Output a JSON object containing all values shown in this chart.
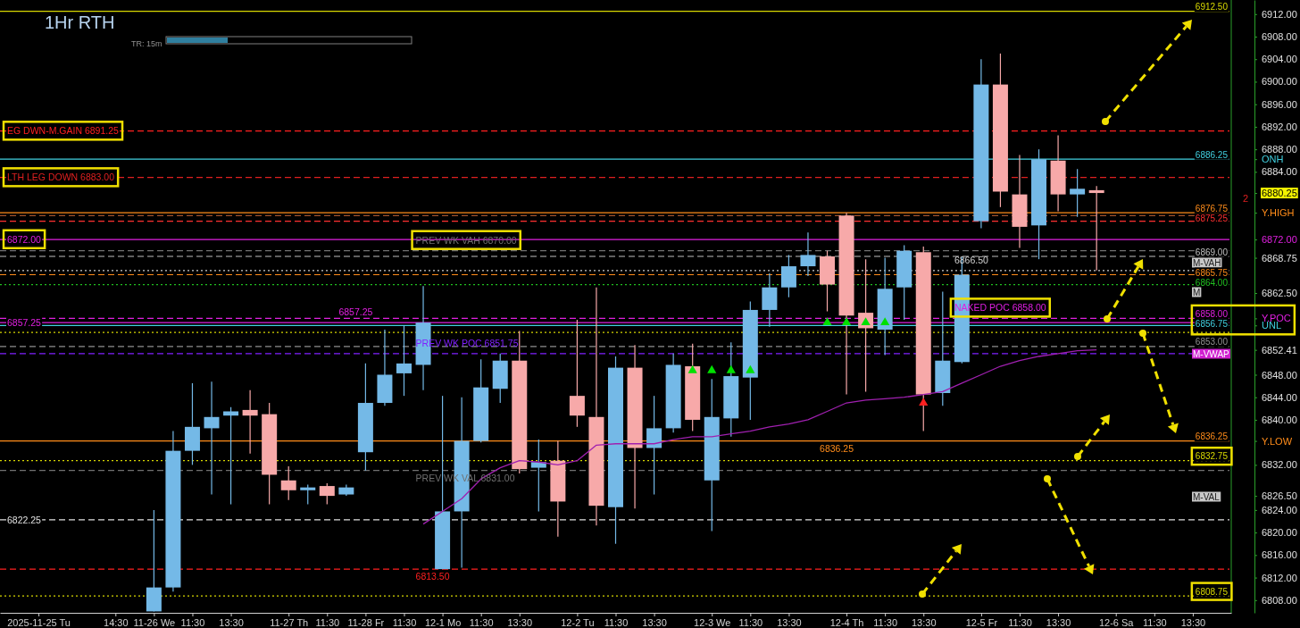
{
  "chart_data": {
    "type": "candlestick",
    "title": "1Hr RTH",
    "categories": [
      "2025-11-25 Tu",
      null,
      null,
      null,
      "14:30",
      null,
      "11-26 We",
      null,
      "11:30",
      null,
      "13:30",
      null,
      null,
      "11-27 Th",
      null,
      "11:30",
      null,
      "11-28 Fr",
      null,
      "11:30",
      null,
      "12-1 Mo",
      null,
      "11:30",
      null,
      "13:30",
      null,
      null,
      "12-2 Tu",
      null,
      "11:30",
      null,
      "13:30",
      null,
      null,
      "12-3 We",
      null,
      "11:30",
      null,
      "13:30",
      null,
      null,
      "12-4 Th",
      null,
      "11:30",
      null,
      "13:30",
      null,
      null,
      "12-5 Fr",
      null,
      "11:30",
      null,
      "13:30",
      null,
      null,
      "12-6 Sa",
      null,
      "11:30",
      null,
      "13:30"
    ],
    "ohlc": [
      null,
      null,
      null,
      null,
      null,
      null,
      [
        6806,
        6824,
        6806,
        6810.25
      ],
      [
        6810.25,
        6838,
        6809.5,
        6834.5
      ],
      [
        6834.5,
        6846.5,
        6832,
        6838.75
      ],
      [
        6838.5,
        6846.75,
        6826.75,
        6840.5
      ],
      [
        6840.75,
        6842.25,
        6825,
        6841.5
      ],
      [
        6841.75,
        6845.25,
        6834,
        6840.75
      ],
      [
        6841,
        6843,
        6825,
        6830.25
      ],
      [
        6829.25,
        6831.75,
        6825.75,
        6827.5
      ],
      [
        6827.5,
        6828.5,
        6825,
        6828
      ],
      [
        6828.25,
        6828.75,
        6825,
        6826.5
      ],
      [
        6826.75,
        6828.5,
        6826.5,
        6828
      ],
      [
        6834.25,
        6850,
        6831,
        6843
      ],
      [
        6843,
        6856,
        6842.5,
        6848
      ],
      [
        6848.25,
        6856.75,
        6844.25,
        6850
      ],
      [
        6849.75,
        6863.75,
        6845.25,
        6857.25
      ],
      [
        6813.5,
        6844.25,
        6813.5,
        6823.75
      ],
      [
        6823.75,
        6844,
        6813.75,
        6836.25
      ],
      [
        6836.25,
        6850.75,
        6836,
        6845.75
      ],
      [
        6845.5,
        6851.75,
        6843,
        6850.5
      ],
      [
        6850.5,
        6855.75,
        6830.5,
        6831.25
      ],
      [
        6831.5,
        6836.5,
        6823.75,
        6832.5
      ],
      [
        6832.75,
        6836.25,
        6819.25,
        6825.5
      ],
      [
        6844.25,
        6857.75,
        6838.75,
        6840.75
      ],
      [
        6840.5,
        6863.5,
        6821.25,
        6824.75
      ],
      [
        6824.5,
        6851.25,
        6818,
        6849.25
      ],
      [
        6849.25,
        6853.25,
        6824.25,
        6835
      ],
      [
        6835,
        6844.25,
        6826.75,
        6838.5
      ],
      [
        6838.5,
        6851.75,
        6837.75,
        6849.75
      ],
      [
        6849.5,
        6853.5,
        6838,
        6840
      ],
      [
        6829.25,
        6847.25,
        6820.25,
        6840.5
      ],
      [
        6840.25,
        6853.75,
        6837,
        6847.75
      ],
      [
        6847.5,
        6861,
        6840,
        6859.5
      ],
      [
        6859.5,
        6866,
        6856.5,
        6863.5
      ],
      [
        6863.5,
        6869.25,
        6861.75,
        6867.25
      ],
      [
        6867.25,
        6873.25,
        6865.5,
        6869.25
      ],
      [
        6869,
        6870,
        6859.25,
        6864
      ],
      [
        6876.25,
        6876.75,
        6844.5,
        6858.5
      ],
      [
        6859,
        6868.5,
        6845,
        6856.25
      ],
      [
        6856,
        6868.75,
        6851.5,
        6863.25
      ],
      [
        6863.5,
        6871,
        6857.75,
        6870
      ],
      [
        6869.75,
        6870.75,
        6838,
        6844.5
      ],
      [
        6844.75,
        6862.75,
        6842.5,
        6850.5
      ],
      [
        6850.25,
        6869,
        6850,
        6865.75
      ],
      [
        6875.25,
        6904,
        6874,
        6899.5
      ],
      [
        6899.5,
        6905,
        6877.75,
        6880.5
      ],
      [
        6880,
        6887,
        6870.5,
        6874.25
      ],
      [
        6874.5,
        6888,
        6868.5,
        6886.25
      ],
      [
        6886,
        6890.5,
        6877,
        6880
      ],
      [
        6880,
        6884.5,
        6876,
        6881
      ],
      [
        6880.75,
        6881.5,
        6866.5,
        6880.25
      ],
      null,
      null,
      null,
      null,
      null
    ],
    "series": [
      {
        "type": "line",
        "color": "#a020b0",
        "values": [
          null,
          null,
          null,
          null,
          null,
          null,
          null,
          null,
          null,
          null,
          null,
          null,
          null,
          null,
          null,
          null,
          null,
          null,
          null,
          null,
          6821.5,
          6823.75,
          6826,
          6829.5,
          6831.5,
          6832.75,
          6832.5,
          6832,
          6832.75,
          6835.5,
          6835.75,
          6835.75,
          6835.75,
          6836.5,
          6837,
          6837,
          6837.5,
          6838,
          6838.75,
          6839.25,
          6840,
          6841.5,
          6843,
          6843.5,
          6843.75,
          6844,
          6844.5,
          6845,
          6846.5,
          6848,
          6849.5,
          6850.5,
          6851.25,
          6851.75,
          6852.25,
          6852.41,
          null,
          null,
          null,
          null,
          null
        ]
      },
      {
        "type": "scatter",
        "color": "#00e000",
        "marker": "triangle",
        "values": [
          null,
          null,
          null,
          null,
          null,
          null,
          null,
          null,
          null,
          null,
          null,
          null,
          null,
          null,
          null,
          null,
          null,
          null,
          null,
          null,
          null,
          null,
          null,
          null,
          null,
          null,
          null,
          null,
          null,
          null,
          null,
          null,
          null,
          null,
          6848.75,
          6848.75,
          6848.75,
          6848.75,
          null,
          null,
          null,
          6857.25,
          6857.25,
          6857.25,
          6857.25,
          null,
          null,
          null,
          null,
          null,
          null,
          null,
          null,
          null,
          null,
          null,
          null,
          null,
          null,
          null,
          null
        ]
      },
      {
        "type": "scatter",
        "color": "#ff2020",
        "marker": "triangle",
        "values": [
          null,
          null,
          null,
          null,
          null,
          null,
          null,
          null,
          null,
          null,
          null,
          null,
          null,
          null,
          null,
          null,
          null,
          null,
          null,
          null,
          null,
          null,
          null,
          null,
          null,
          null,
          null,
          null,
          null,
          null,
          null,
          null,
          null,
          null,
          null,
          null,
          null,
          null,
          null,
          null,
          null,
          null,
          null,
          null,
          null,
          null,
          6843,
          null,
          null,
          null,
          null,
          null,
          null,
          null,
          null,
          null,
          null,
          null,
          null,
          null,
          null
        ]
      }
    ],
    "ylim": [
      6805.75,
      6914.5
    ],
    "yticks": [
      {
        "value": 6912,
        "label": "6912.00"
      },
      {
        "value": 6908,
        "label": "6908.00"
      },
      {
        "value": 6904,
        "label": "6904.00"
      },
      {
        "value": 6900,
        "label": "6900.00"
      },
      {
        "value": 6896,
        "label": "6896.00"
      },
      {
        "value": 6892,
        "label": "6892.00"
      },
      {
        "value": 6888,
        "label": "6888.00"
      },
      {
        "value": 6886.25,
        "label": "ONH"
      },
      {
        "value": 6884,
        "label": "6884.00"
      },
      6880.25,
      {
        "value": 6876.75,
        "label": "Y.HIGH"
      },
      {
        "value": 6872,
        "label": "6872.00"
      },
      6868.75,
      {
        "value": 6862.5,
        "label": "6862.50"
      },
      {
        "value": 6858,
        "label": "Y.POC"
      },
      {
        "value": 6856.75,
        "label": "UNL"
      },
      6852.41,
      {
        "value": 6848,
        "label": "6848.00"
      },
      {
        "value": 6844,
        "label": "6844.00"
      },
      {
        "value": 6840,
        "label": "6840.00"
      },
      {
        "value": 6836.25,
        "label": "Y.LOW"
      },
      {
        "value": 6832,
        "label": "6832.00"
      },
      {
        "value": 6826.5,
        "label": "6826.50"
      },
      {
        "value": 6824,
        "label": "6824.00"
      },
      {
        "value": 6820,
        "label": "6820.00"
      },
      {
        "value": 6816,
        "label": "6816.00"
      },
      {
        "value": 6812,
        "label": "6812.00"
      },
      {
        "value": 6808,
        "label": "6808.00"
      }
    ],
    "ref_lines": [
      {
        "axis": "y",
        "value": 6912.5,
        "label": "6912.50",
        "color": "#d8d800",
        "line_style": "solid"
      },
      {
        "axis": "y",
        "value": 6891.25,
        "label": null,
        "color": "#ff2020",
        "line_style": "dashed"
      },
      {
        "axis": "y",
        "value": 6886.25,
        "label": "6886.25",
        "color": "#40d0e0",
        "line_style": "solid"
      },
      {
        "axis": "y",
        "value": 6883,
        "label": null,
        "color": "#e02020",
        "line_style": "dashed"
      },
      {
        "axis": "y",
        "value": 6876.75,
        "label": "6876.75",
        "color": "#ff8c1a",
        "line_style": "solid"
      },
      {
        "axis": "y",
        "value": 6876.25,
        "label": null,
        "color": "#a0522d",
        "line_style": "dashed"
      },
      {
        "axis": "y",
        "value": 6875.25,
        "label": "6875.25",
        "color": "#ff3030",
        "line_style": "dashed"
      },
      {
        "axis": "y",
        "value": 6872,
        "label": null,
        "color": "#e020e0",
        "line_style": "solid"
      },
      {
        "axis": "y",
        "value": 6870,
        "label": null,
        "color": "#707070",
        "line_style": "dashed"
      },
      {
        "axis": "y",
        "value": 6869,
        "label": "6869.00",
        "color": "#c0c0c0",
        "line_style": "dashed"
      },
      {
        "axis": "y",
        "value": 6866.5,
        "label": null,
        "color": "#d0d0d0",
        "line_style": "dotted"
      },
      {
        "axis": "y",
        "value": 6865.75,
        "label": "6865.75",
        "color": "#ff8c1a",
        "line_style": "dashed"
      },
      {
        "axis": "y",
        "value": 6864,
        "label": "6864.00",
        "color": "#20c020",
        "line_style": "dotted"
      },
      {
        "axis": "y",
        "value": 6858,
        "label": "6858.00",
        "color": "#e020e0",
        "line_style": "dashed"
      },
      {
        "axis": "y",
        "value": 6857.25,
        "label": null,
        "color": "#e020e0",
        "line_style": "solid"
      },
      {
        "axis": "y",
        "value": 6856.75,
        "label": "6856.75",
        "color": "#40d0e0",
        "line_style": "solid"
      },
      {
        "axis": "y",
        "value": 6855.5,
        "label": null,
        "color": "#d8d800",
        "line_style": "dotted"
      },
      {
        "axis": "y",
        "value": 6853,
        "label": "6853.00",
        "color": "#909090",
        "line_style": "dashed"
      },
      {
        "axis": "y",
        "value": 6851.75,
        "label": null,
        "color": "#8020ff",
        "line_style": "dashed"
      },
      {
        "axis": "y",
        "value": 6836.25,
        "label": "6836.25",
        "color": "#ff8c1a",
        "line_style": "solid"
      },
      {
        "axis": "y",
        "value": 6832.75,
        "label": "6832.75",
        "color": "#d8d800",
        "line_style": "dotted"
      },
      {
        "axis": "y",
        "value": 6831,
        "label": null,
        "color": "#707070",
        "line_style": "dashed"
      },
      {
        "axis": "y",
        "value": 6822.25,
        "label": null,
        "color": "#e0e0e0",
        "line_style": "dashed"
      },
      {
        "axis": "y",
        "value": 6813.5,
        "label": null,
        "color": "#ff2020",
        "line_style": "dashed"
      },
      {
        "axis": "y",
        "value": 6808.75,
        "label": "6808.75",
        "color": "#d8d800",
        "line_style": "dotted"
      }
    ],
    "annotations": [
      "TR: 15m",
      {
        "text": "EG DWN-M.GAIN  6891.25",
        "y": 6891.25
      },
      {
        "text": "LTH LEG DOWN  6883.00",
        "y": 6883
      },
      {
        "text": "6872.00",
        "y": 6872
      },
      {
        "text": "6857.25",
        "y": 6857.25
      },
      {
        "text": "6822.25",
        "y": 6822.25
      },
      {
        "text": "6857.25",
        "x": "11-28 Fr",
        "y": 6857.25
      },
      {
        "text": "PREV WK VAH  6870.00",
        "x": "12-1 Mo",
        "y": 6870
      },
      {
        "text": "PREV WK POC  6851.75",
        "x": "12-1 Mo",
        "y": 6851.75
      },
      {
        "text": "PREV WK VAL  6831.00",
        "x": "12-1 Mo",
        "y": 6831
      },
      {
        "text": "6813.50",
        "x": "12-1 Mo",
        "y": 6813.5
      },
      {
        "text": "6836.25",
        "x": "12-4 Th",
        "y": 6836.25
      },
      {
        "text": "6866.50",
        "x": "12-5 Fr",
        "y": 6866.5
      },
      {
        "text": "NAKED POC  6858.00",
        "x": "12-5 Fr",
        "y": 6858
      },
      "M-VAH",
      "M",
      "M-VWAP",
      "M-VAL",
      "2"
    ]
  }
}
